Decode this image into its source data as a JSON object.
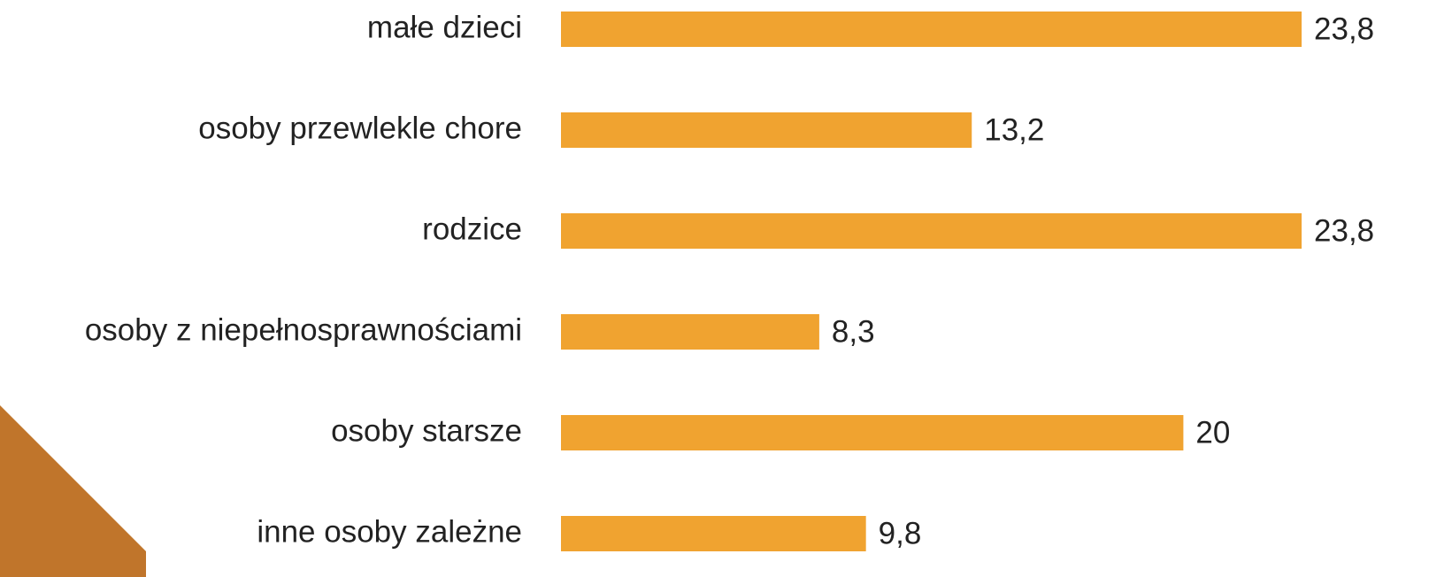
{
  "chart_data": {
    "type": "barh",
    "categories": [
      "małe dzieci",
      "osoby przewlekle chore",
      "rodzice",
      "osoby z niepełnosprawnościami",
      "osoby starsze",
      "inne osoby zależne"
    ],
    "values": [
      23.8,
      13.2,
      23.8,
      8.3,
      20,
      9.8
    ],
    "value_labels": [
      "23,8",
      "13,2",
      "23,8",
      "8,3",
      "20",
      "9,8"
    ],
    "color": "#f0a330"
  }
}
